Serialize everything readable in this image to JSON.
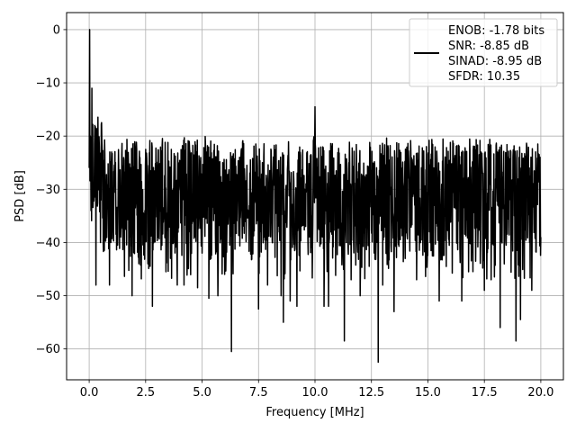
{
  "chart_data": {
    "type": "line",
    "xlabel": "Frequency [MHz]",
    "ylabel": "PSD [dB]",
    "xlim": [
      -1.0,
      21.0
    ],
    "ylim": [
      -65.8,
      3.2
    ],
    "xticks": [
      0.0,
      2.5,
      5.0,
      7.5,
      10.0,
      12.5,
      15.0,
      17.5,
      20.0
    ],
    "xtick_labels": [
      "0.0",
      "2.5",
      "5.0",
      "7.5",
      "10.0",
      "12.5",
      "15.0",
      "17.5",
      "20.0"
    ],
    "yticks": [
      0,
      -10,
      -20,
      -30,
      -40,
      -50,
      -60
    ],
    "ytick_labels": [
      "0",
      "−10",
      "−20",
      "−30",
      "−40",
      "−50",
      "−60"
    ],
    "grid": true,
    "legend_position": "top-right",
    "series": [
      {
        "name": "ENOB: -1.78 bits\nSNR: -8.85 dB\nSINAD: -8.95 dB\nSFDR: 10.35",
        "color": "#000000",
        "noise_floor_db": -31,
        "noise_band_db": [
          -40,
          -22
        ],
        "points": [
          [
            0.0,
            -26.0
          ],
          [
            0.02,
            0.0
          ],
          [
            0.05,
            -20.0
          ],
          [
            0.08,
            -34.0
          ],
          [
            0.12,
            -11.0
          ],
          [
            0.18,
            -32.0
          ],
          [
            0.25,
            -18.0
          ],
          [
            0.3,
            -48.0
          ],
          [
            0.35,
            -25.0
          ],
          [
            0.5,
            -40.0
          ],
          [
            0.9,
            -48.0
          ],
          [
            1.9,
            -50.0
          ],
          [
            2.2,
            -44.0
          ],
          [
            2.6,
            -44.0
          ],
          [
            2.7,
            -44.5
          ],
          [
            2.8,
            -52.0
          ],
          [
            3.4,
            -45.5
          ],
          [
            3.6,
            -43.0
          ],
          [
            3.9,
            -48.0
          ],
          [
            4.2,
            -48.0
          ],
          [
            4.8,
            -48.5
          ],
          [
            5.0,
            -42.0
          ],
          [
            5.3,
            -50.5
          ],
          [
            5.7,
            -50.0
          ],
          [
            6.0,
            -46.0
          ],
          [
            6.3,
            -60.5
          ],
          [
            7.5,
            -52.5
          ],
          [
            7.9,
            -48.0
          ],
          [
            8.5,
            -50.0
          ],
          [
            8.6,
            -55.0
          ],
          [
            8.9,
            -51.0
          ],
          [
            9.2,
            -52.0
          ],
          [
            10.0,
            -14.5
          ],
          [
            10.4,
            -52.0
          ],
          [
            10.6,
            -52.0
          ],
          [
            11.3,
            -58.5
          ],
          [
            11.6,
            -47.0
          ],
          [
            12.0,
            -50.0
          ],
          [
            12.4,
            -44.5
          ],
          [
            12.8,
            -62.5
          ],
          [
            13.0,
            -48.0
          ],
          [
            13.5,
            -53.0
          ],
          [
            14.5,
            -47.0
          ],
          [
            15.5,
            -51.0
          ],
          [
            16.5,
            -51.0
          ],
          [
            17.5,
            -49.0
          ],
          [
            17.8,
            -47.0
          ],
          [
            18.2,
            -56.0
          ],
          [
            18.9,
            -58.5
          ],
          [
            19.1,
            -54.5
          ],
          [
            19.6,
            -49.0
          ],
          [
            20.0,
            -39.0
          ]
        ]
      }
    ]
  }
}
